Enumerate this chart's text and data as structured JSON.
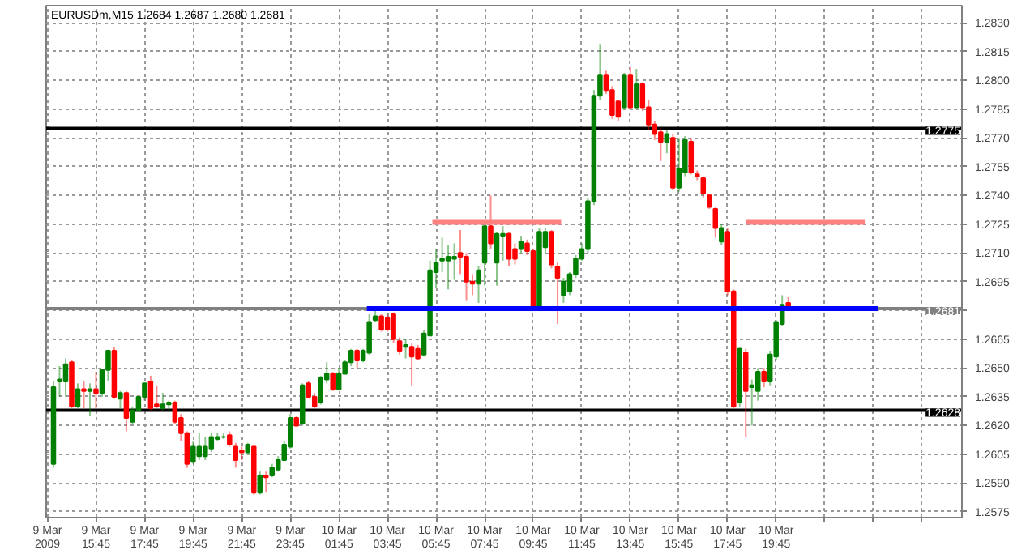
{
  "chart_data": {
    "type": "candlestick",
    "title": "EURUSDm,M15  1.2684 1.2687 1.2680 1.2681",
    "xlim": [
      "2009-03-09T13:42",
      "2009-03-11T03:24"
    ],
    "ylim": [
      1.2572,
      1.2839
    ],
    "xticks": [
      {
        "value": "2009-03-09T13:45",
        "label": "9 Mar 2009"
      },
      {
        "value": "2009-03-09T15:45",
        "label": "9 Mar 15:45"
      },
      {
        "value": "2009-03-09T17:45",
        "label": "9 Mar 17:45"
      },
      {
        "value": "2009-03-09T19:45",
        "label": "9 Mar 19:45"
      },
      {
        "value": "2009-03-09T21:45",
        "label": "9 Mar 21:45"
      },
      {
        "value": "2009-03-09T23:45",
        "label": "9 Mar 23:45"
      },
      {
        "value": "2009-03-10T01:45",
        "label": "10 Mar 01:45"
      },
      {
        "value": "2009-03-10T03:45",
        "label": "10 Mar 03:45"
      },
      {
        "value": "2009-03-10T05:45",
        "label": "10 Mar 05:45"
      },
      {
        "value": "2009-03-10T07:45",
        "label": "10 Mar 07:45"
      },
      {
        "value": "2009-03-10T09:45",
        "label": "10 Mar 09:45"
      },
      {
        "value": "2009-03-10T11:45",
        "label": "10 Mar 11:45"
      },
      {
        "value": "2009-03-10T13:45",
        "label": "10 Mar 13:45"
      },
      {
        "value": "2009-03-10T15:45",
        "label": "10 Mar 15:45"
      },
      {
        "value": "2009-03-10T17:45",
        "label": "10 Mar 17:45"
      },
      {
        "value": "2009-03-10T19:45",
        "label": "10 Mar 19:45"
      },
      {
        "value": "2009-03-10T21:45",
        "label": null
      },
      {
        "value": "2009-03-10T23:45",
        "label": null
      },
      {
        "value": "2009-03-11T01:45",
        "label": null
      }
    ],
    "yticks": [
      {
        "value": 1.2575,
        "label": "1.2575"
      },
      {
        "value": 1.259,
        "label": "1.2590"
      },
      {
        "value": 1.2605,
        "label": "1.2605"
      },
      {
        "value": 1.262,
        "label": "1.2620"
      },
      {
        "value": 1.2635,
        "label": "1.2635"
      },
      {
        "value": 1.265,
        "label": "1.2650"
      },
      {
        "value": 1.2665,
        "label": "1.2665"
      },
      {
        "value": 1.268,
        "label": null
      },
      {
        "value": 1.2695,
        "label": "1.2695"
      },
      {
        "value": 1.271,
        "label": "1.2710"
      },
      {
        "value": 1.2725,
        "label": "1.2725"
      },
      {
        "value": 1.274,
        "label": "1.2740"
      },
      {
        "value": 1.2755,
        "label": "1.2755"
      },
      {
        "value": 1.277,
        "label": "1.2770"
      },
      {
        "value": 1.2785,
        "label": "1.2785"
      },
      {
        "value": 1.28,
        "label": "1.2800"
      },
      {
        "value": 1.2815,
        "label": "1.2815"
      },
      {
        "value": 1.283,
        "label": "1.2830"
      }
    ],
    "grid": true,
    "ref_lines": [
      {
        "axis": "y",
        "value": 1.2775,
        "label": "1.2775",
        "color": "#000000"
      },
      {
        "axis": "y",
        "value": 1.2628,
        "label": "1.2628",
        "color": "#000000"
      },
      {
        "axis": "y",
        "value": 1.2681,
        "label": "1.2681",
        "color": "#808080"
      }
    ],
    "series": [
      {
        "colors": [
          "#008000",
          "#008000",
          "#008000",
          "#ff0000",
          "#008000",
          "#ff0000",
          "#008000",
          "#ff0000",
          "#008000",
          "#008000",
          "#ff0000",
          "#008000",
          "#ff0000",
          "#008000",
          "#008000",
          "#008000",
          "#ff0000",
          "#ff0000",
          "#008000",
          "#008000",
          "#ff0000",
          "#ff0000",
          "#ff0000",
          "#008000",
          "#008000",
          "#008000",
          "#008000",
          "#008000",
          "#008000",
          "#ff0000",
          "#ff0000",
          "#ff0000",
          "#008000",
          "#ff0000",
          "#008000",
          "#ff0000",
          "#008000",
          "#008000",
          "#008000",
          "#008000",
          "#ff0000",
          "#008000",
          "#ff0000",
          "#ff0000",
          "#008000",
          "#008000",
          "#ff0000",
          "#008000",
          "#008000",
          "#008000",
          "#ff0000",
          "#008000",
          "#008000",
          "#008000",
          "#ff0000",
          "#ff0000",
          "#ff0000",
          "#ff0000",
          "#008000",
          "#ff0000",
          "#ff0000",
          "#008000",
          "#008000",
          "#008000",
          "#008000",
          "#008000",
          "#008000",
          "#ff0000",
          "#ff0000",
          "#ff0000",
          "#008000",
          "#008000",
          "#ff0000",
          "#008000",
          "#008000",
          "#ff0000",
          "#ff0000",
          "#008000",
          "#ff0000",
          "#ff0000",
          "#008000",
          "#008000",
          "#ff0000",
          "#ff0000",
          "#008000",
          "#008000",
          "#008000",
          "#008000",
          "#008000",
          "#008000",
          "#008000",
          "#ff0000",
          "#ff0000",
          "#ff0000",
          "#008000",
          "#ff0000",
          "#008000",
          "#ff0000",
          "#ff0000",
          "#ff0000",
          "#ff0000",
          "#008000",
          "#ff0000",
          "#008000",
          "#008000",
          "#ff0000",
          "#ff0000",
          "#ff0000",
          "#ff0000",
          "#ff0000",
          "#008000",
          "#ff0000",
          "#ff0000",
          "#008000",
          "#ff0000",
          "#008000",
          "#008000",
          "#ff0000",
          "#008000",
          "#008000",
          "#008000",
          "#ff0000"
        ],
        "x": [
          "2009-03-09T14:00",
          "2009-03-09T14:15",
          "2009-03-09T14:30",
          "2009-03-09T14:45",
          "2009-03-09T15:00",
          "2009-03-09T15:15",
          "2009-03-09T15:30",
          "2009-03-09T15:45",
          "2009-03-09T16:00",
          "2009-03-09T16:15",
          "2009-03-09T16:30",
          "2009-03-09T16:45",
          "2009-03-09T17:00",
          "2009-03-09T17:15",
          "2009-03-09T17:30",
          "2009-03-09T17:45",
          "2009-03-09T18:00",
          "2009-03-09T18:15",
          "2009-03-09T18:30",
          "2009-03-09T18:45",
          "2009-03-09T19:00",
          "2009-03-09T19:15",
          "2009-03-09T19:30",
          "2009-03-09T19:45",
          "2009-03-09T20:00",
          "2009-03-09T20:15",
          "2009-03-09T20:30",
          "2009-03-09T20:45",
          "2009-03-09T21:00",
          "2009-03-09T21:15",
          "2009-03-09T21:30",
          "2009-03-09T21:45",
          "2009-03-09T22:00",
          "2009-03-09T22:15",
          "2009-03-09T22:30",
          "2009-03-09T22:45",
          "2009-03-09T23:00",
          "2009-03-09T23:15",
          "2009-03-09T23:30",
          "2009-03-09T23:45",
          "2009-03-10T00:00",
          "2009-03-10T00:15",
          "2009-03-10T00:30",
          "2009-03-10T00:45",
          "2009-03-10T01:00",
          "2009-03-10T01:15",
          "2009-03-10T01:30",
          "2009-03-10T01:45",
          "2009-03-10T02:00",
          "2009-03-10T02:15",
          "2009-03-10T02:30",
          "2009-03-10T02:45",
          "2009-03-10T03:00",
          "2009-03-10T03:15",
          "2009-03-10T03:30",
          "2009-03-10T03:45",
          "2009-03-10T04:00",
          "2009-03-10T04:15",
          "2009-03-10T04:30",
          "2009-03-10T04:45",
          "2009-03-10T05:00",
          "2009-03-10T05:15",
          "2009-03-10T05:30",
          "2009-03-10T05:45",
          "2009-03-10T06:00",
          "2009-03-10T06:15",
          "2009-03-10T06:30",
          "2009-03-10T06:45",
          "2009-03-10T07:00",
          "2009-03-10T07:15",
          "2009-03-10T07:30",
          "2009-03-10T07:45",
          "2009-03-10T08:00",
          "2009-03-10T08:15",
          "2009-03-10T08:30",
          "2009-03-10T08:45",
          "2009-03-10T09:00",
          "2009-03-10T09:15",
          "2009-03-10T09:30",
          "2009-03-10T09:45",
          "2009-03-10T10:00",
          "2009-03-10T10:15",
          "2009-03-10T10:30",
          "2009-03-10T10:45",
          "2009-03-10T11:00",
          "2009-03-10T11:15",
          "2009-03-10T11:30",
          "2009-03-10T11:45",
          "2009-03-10T12:00",
          "2009-03-10T12:15",
          "2009-03-10T12:30",
          "2009-03-10T12:45",
          "2009-03-10T13:00",
          "2009-03-10T13:15",
          "2009-03-10T13:30",
          "2009-03-10T13:45",
          "2009-03-10T14:00",
          "2009-03-10T14:15",
          "2009-03-10T14:30",
          "2009-03-10T14:45",
          "2009-03-10T15:00",
          "2009-03-10T15:15",
          "2009-03-10T15:30",
          "2009-03-10T15:45",
          "2009-03-10T16:00",
          "2009-03-10T16:15",
          "2009-03-10T16:30",
          "2009-03-10T16:45",
          "2009-03-10T17:00",
          "2009-03-10T17:15",
          "2009-03-10T17:30",
          "2009-03-10T17:45",
          "2009-03-10T18:00",
          "2009-03-10T18:15",
          "2009-03-10T18:30",
          "2009-03-10T18:45",
          "2009-03-10T19:00",
          "2009-03-10T19:15",
          "2009-03-10T19:30",
          "2009-03-10T19:45",
          "2009-03-10T20:00",
          "2009-03-10T20:15"
        ],
        "ohlc": [
          [
            1.26,
            1.2643,
            1.2598,
            1.264
          ],
          [
            1.2643,
            1.2651,
            1.2635,
            1.2644
          ],
          [
            1.2643,
            1.2655,
            1.2635,
            1.2652
          ],
          [
            1.2653,
            1.2654,
            1.2629,
            1.263
          ],
          [
            1.263,
            1.2642,
            1.2629,
            1.2639
          ],
          [
            1.2639,
            1.2643,
            1.2629,
            1.2638
          ],
          [
            1.2638,
            1.2642,
            1.2625,
            1.2639
          ],
          [
            1.2639,
            1.2648,
            1.2629,
            1.2637
          ],
          [
            1.2637,
            1.2649,
            1.2635,
            1.2649
          ],
          [
            1.2649,
            1.2659,
            1.2643,
            1.2659
          ],
          [
            1.2659,
            1.2661,
            1.2634,
            1.2635
          ],
          [
            1.2634,
            1.2638,
            1.2629,
            1.2637
          ],
          [
            1.2637,
            1.2638,
            1.2617,
            1.2624
          ],
          [
            1.2622,
            1.263,
            1.2621,
            1.2628
          ],
          [
            1.2628,
            1.2635,
            1.2628,
            1.2635
          ],
          [
            1.2635,
            1.2642,
            1.2633,
            1.2642
          ],
          [
            1.2643,
            1.2646,
            1.2628,
            1.2629
          ],
          [
            1.2631,
            1.2641,
            1.2629,
            1.263
          ],
          [
            1.2629,
            1.2637,
            1.2628,
            1.2631
          ],
          [
            1.2631,
            1.2633,
            1.2628,
            1.2632
          ],
          [
            1.2632,
            1.2633,
            1.2621,
            1.2622
          ],
          [
            1.2624,
            1.2626,
            1.2612,
            1.2616
          ],
          [
            1.2616,
            1.2617,
            1.2598,
            1.26
          ],
          [
            1.2601,
            1.2612,
            1.26,
            1.2609
          ],
          [
            1.2604,
            1.2616,
            1.2602,
            1.2609
          ],
          [
            1.2604,
            1.2614,
            1.2602,
            1.2609
          ],
          [
            1.2608,
            1.2616,
            1.2606,
            1.2614
          ],
          [
            1.2613,
            1.2616,
            1.2612,
            1.2614
          ],
          [
            1.2614,
            1.2616,
            1.2613,
            1.2614
          ],
          [
            1.2615,
            1.2617,
            1.2609,
            1.261
          ],
          [
            1.2609,
            1.2611,
            1.2598,
            1.2602
          ],
          [
            1.2607,
            1.2609,
            1.2602,
            1.2606
          ],
          [
            1.2606,
            1.2611,
            1.2605,
            1.261
          ],
          [
            1.2609,
            1.261,
            1.2584,
            1.2585
          ],
          [
            1.2585,
            1.2596,
            1.2584,
            1.2594
          ],
          [
            1.2594,
            1.2596,
            1.2585,
            1.2593
          ],
          [
            1.2594,
            1.26,
            1.2593,
            1.2598
          ],
          [
            1.2597,
            1.2604,
            1.2596,
            1.2602
          ],
          [
            1.2602,
            1.2612,
            1.2602,
            1.261
          ],
          [
            1.2609,
            1.2626,
            1.2608,
            1.2624
          ],
          [
            1.2624,
            1.2625,
            1.262,
            1.262
          ],
          [
            1.2621,
            1.2642,
            1.262,
            1.2641
          ],
          [
            1.2642,
            1.2643,
            1.2634,
            1.2635
          ],
          [
            1.2635,
            1.2637,
            1.2629,
            1.263
          ],
          [
            1.2632,
            1.2646,
            1.2631,
            1.2645
          ],
          [
            1.2644,
            1.2653,
            1.2642,
            1.2647
          ],
          [
            1.2647,
            1.2648,
            1.2638,
            1.2639
          ],
          [
            1.2639,
            1.265,
            1.2639,
            1.2647
          ],
          [
            1.2647,
            1.2654,
            1.2647,
            1.2653
          ],
          [
            1.2653,
            1.266,
            1.2651,
            1.2659
          ],
          [
            1.2659,
            1.266,
            1.265,
            1.2654
          ],
          [
            1.2654,
            1.266,
            1.2653,
            1.2659
          ],
          [
            1.2658,
            1.2678,
            1.2657,
            1.2674
          ],
          [
            1.2675,
            1.268,
            1.2674,
            1.2677
          ],
          [
            1.2677,
            1.2678,
            1.2669,
            1.267
          ],
          [
            1.2676,
            1.2678,
            1.2669,
            1.267
          ],
          [
            1.2678,
            1.2679,
            1.2663,
            1.2665
          ],
          [
            1.2664,
            1.2666,
            1.2657,
            1.2659
          ],
          [
            1.2661,
            1.2665,
            1.2655,
            1.2662
          ],
          [
            1.2661,
            1.2663,
            1.2641,
            1.2656
          ],
          [
            1.266,
            1.2662,
            1.2654,
            1.2655
          ],
          [
            1.2657,
            1.267,
            1.2656,
            1.2668
          ],
          [
            1.2667,
            1.2706,
            1.2667,
            1.2701
          ],
          [
            1.27,
            1.2712,
            1.2692,
            1.2705
          ],
          [
            1.2706,
            1.2718,
            1.27,
            1.2707
          ],
          [
            1.2706,
            1.2714,
            1.2691,
            1.2708
          ],
          [
            1.2707,
            1.2715,
            1.2696,
            1.2708
          ],
          [
            1.271,
            1.2722,
            1.2699,
            1.2708
          ],
          [
            1.2708,
            1.271,
            1.2685,
            1.2695
          ],
          [
            1.2695,
            1.2699,
            1.2688,
            1.2694
          ],
          [
            1.2694,
            1.2703,
            1.2684,
            1.2701
          ],
          [
            1.2705,
            1.2725,
            1.2693,
            1.2724
          ],
          [
            1.2724,
            1.274,
            1.2712,
            1.2715
          ],
          [
            1.2705,
            1.2721,
            1.2693,
            1.272
          ],
          [
            1.2719,
            1.2724,
            1.2706,
            1.272
          ],
          [
            1.272,
            1.2721,
            1.2703,
            1.2707
          ],
          [
            1.2712,
            1.2715,
            1.2704,
            1.2707
          ],
          [
            1.2712,
            1.2719,
            1.271,
            1.2716
          ],
          [
            1.2715,
            1.2717,
            1.2709,
            1.2711
          ],
          [
            1.2711,
            1.2712,
            1.268,
            1.2681
          ],
          [
            1.2681,
            1.2723,
            1.268,
            1.2721
          ],
          [
            1.2713,
            1.2723,
            1.271,
            1.2721
          ],
          [
            1.2721,
            1.2722,
            1.2702,
            1.2704
          ],
          [
            1.2703,
            1.2705,
            1.2673,
            1.2697
          ],
          [
            1.2688,
            1.2697,
            1.2684,
            1.2695
          ],
          [
            1.269,
            1.27,
            1.2688,
            1.2699
          ],
          [
            1.2699,
            1.2709,
            1.2697,
            1.2707
          ],
          [
            1.2707,
            1.2715,
            1.2706,
            1.2712
          ],
          [
            1.2712,
            1.2739,
            1.271,
            1.2737
          ],
          [
            1.2737,
            1.2795,
            1.2735,
            1.2792
          ],
          [
            1.2792,
            1.2819,
            1.279,
            1.2803
          ],
          [
            1.2803,
            1.2805,
            1.2793,
            1.2795
          ],
          [
            1.2795,
            1.2797,
            1.278,
            1.2782
          ],
          [
            1.2789,
            1.279,
            1.2779,
            1.2781
          ],
          [
            1.2786,
            1.2804,
            1.2785,
            1.2803
          ],
          [
            1.2803,
            1.2807,
            1.2785,
            1.2786
          ],
          [
            1.2786,
            1.2806,
            1.2785,
            1.2798
          ],
          [
            1.2798,
            1.2799,
            1.2784,
            1.2786
          ],
          [
            1.2786,
            1.279,
            1.2774,
            1.2777
          ],
          [
            1.2777,
            1.2779,
            1.2769,
            1.2772
          ],
          [
            1.2773,
            1.2775,
            1.2758,
            1.2768
          ],
          [
            1.2768,
            1.2774,
            1.2762,
            1.2772
          ],
          [
            1.277,
            1.2772,
            1.2743,
            1.2744
          ],
          [
            1.2744,
            1.277,
            1.2742,
            1.2754
          ],
          [
            1.2752,
            1.2771,
            1.275,
            1.2769
          ],
          [
            1.2768,
            1.277,
            1.2751,
            1.2752
          ],
          [
            1.2751,
            1.2753,
            1.2748,
            1.275
          ],
          [
            1.2749,
            1.275,
            1.2739,
            1.2741
          ],
          [
            1.274,
            1.2741,
            1.2733,
            1.2734
          ],
          [
            1.2733,
            1.2734,
            1.2718,
            1.2723
          ],
          [
            1.2716,
            1.2725,
            1.2714,
            1.2723
          ],
          [
            1.2721,
            1.2723,
            1.2688,
            1.269
          ],
          [
            1.269,
            1.2691,
            1.2629,
            1.263
          ],
          [
            1.2632,
            1.2661,
            1.263,
            1.266
          ],
          [
            1.2658,
            1.266,
            1.2614,
            1.2638
          ],
          [
            1.264,
            1.2644,
            1.262,
            1.2641
          ],
          [
            1.2638,
            1.265,
            1.2633,
            1.2648
          ],
          [
            1.2648,
            1.265,
            1.264,
            1.2643
          ],
          [
            1.2643,
            1.2659,
            1.2641,
            1.2657
          ],
          [
            1.2656,
            1.2675,
            1.2654,
            1.2674
          ],
          [
            1.2673,
            1.2688,
            1.2672,
            1.2683
          ],
          [
            1.2684,
            1.2687,
            1.268,
            1.2681
          ]
        ]
      },
      {
        "type": "line",
        "color": "#0000ff",
        "x": [
          "2009-03-10T02:54",
          "2009-03-10T23:57"
        ],
        "values": [
          1.2681,
          1.2681
        ]
      },
      {
        "type": "line",
        "color": "#ff8080",
        "x": [
          "2009-03-10T05:36",
          "2009-03-10T10:54"
        ],
        "values": [
          1.2726,
          1.2726
        ]
      },
      {
        "type": "line",
        "color": "#ff8080",
        "x": [
          "2009-03-10T18:30",
          "2009-03-10T23:24"
        ],
        "values": [
          1.2726,
          1.2726
        ]
      }
    ]
  }
}
